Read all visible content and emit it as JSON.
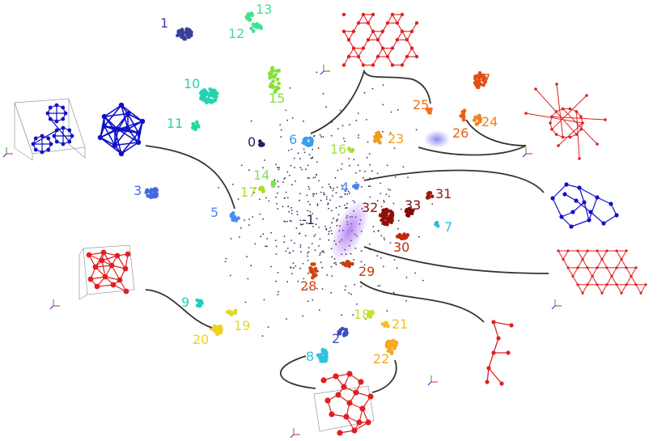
{
  "diagram": {
    "clusters": [
      {
        "id": "c0",
        "label": "0",
        "color": "#2e1a5e"
      },
      {
        "id": "c1",
        "label": "1",
        "color": "#3b3f99"
      },
      {
        "id": "c2",
        "label": "2",
        "color": "#3f4fbf"
      },
      {
        "id": "c3",
        "label": "3",
        "color": "#4169e1"
      },
      {
        "id": "c4",
        "label": "4",
        "color": "#4682f0"
      },
      {
        "id": "c5",
        "label": "5",
        "color": "#4a8cf5"
      },
      {
        "id": "c6",
        "label": "6",
        "color": "#3c9cf0"
      },
      {
        "id": "c7",
        "label": "7",
        "color": "#33b8e0"
      },
      {
        "id": "c8",
        "label": "8",
        "color": "#2ec4dc"
      },
      {
        "id": "c9",
        "label": "9",
        "color": "#1fcfc0"
      },
      {
        "id": "c10",
        "label": "10",
        "color": "#22d4b0"
      },
      {
        "id": "c11",
        "label": "11",
        "color": "#26d6a0"
      },
      {
        "id": "c12",
        "label": "12",
        "color": "#3ee09a"
      },
      {
        "id": "c13",
        "label": "13",
        "color": "#44e08a"
      },
      {
        "id": "c14",
        "label": "14",
        "color": "#7ee060"
      },
      {
        "id": "c15",
        "label": "15",
        "color": "#86e03c"
      },
      {
        "id": "c16",
        "label": "16",
        "color": "#a4e03a"
      },
      {
        "id": "c17",
        "label": "17",
        "color": "#a8e02c"
      },
      {
        "id": "c18",
        "label": "18",
        "color": "#c8e030"
      },
      {
        "id": "c19",
        "label": "19",
        "color": "#e0d828"
      },
      {
        "id": "c20",
        "label": "20",
        "color": "#f0d020"
      },
      {
        "id": "c21",
        "label": "21",
        "color": "#f5c020"
      },
      {
        "id": "c22",
        "label": "22",
        "color": "#f5a820"
      },
      {
        "id": "c23",
        "label": "23",
        "color": "#f59a1e"
      },
      {
        "id": "c24",
        "label": "24",
        "color": "#f0801e"
      },
      {
        "id": "c25",
        "label": "25",
        "color": "#f07018"
      },
      {
        "id": "c26",
        "label": "26",
        "color": "#e86214"
      },
      {
        "id": "c27",
        "label": "27",
        "color": "#e05010"
      },
      {
        "id": "c28",
        "label": "28",
        "color": "#d04410"
      },
      {
        "id": "c29",
        "label": "29",
        "color": "#c83c10"
      },
      {
        "id": "c30",
        "label": "30",
        "color": "#c02a0a"
      },
      {
        "id": "c31",
        "label": "31",
        "color": "#a01808"
      },
      {
        "id": "c32",
        "label": "32",
        "color": "#901008"
      },
      {
        "id": "c33",
        "label": "33",
        "color": "#800808"
      },
      {
        "id": "cneg1",
        "label": "-1",
        "color": "#2a1a4a"
      }
    ],
    "structure_colors": {
      "blue": "#1010c8",
      "red": "#e02020",
      "halo": "#9b5cf0"
    }
  }
}
